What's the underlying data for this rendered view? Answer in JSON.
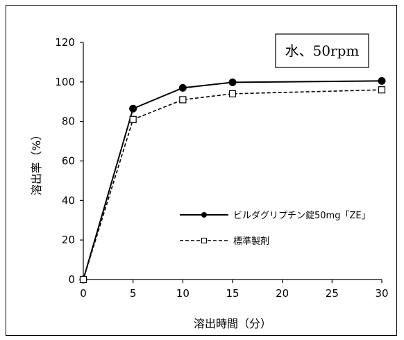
{
  "chart_data": {
    "type": "line",
    "xlabel": "溶出時間（分）",
    "ylabel": "溶出率（%）",
    "xlim": [
      0,
      30
    ],
    "ylim": [
      0,
      120
    ],
    "xticks": [
      0,
      5,
      10,
      15,
      20,
      25,
      30
    ],
    "yticks": [
      0,
      20,
      40,
      60,
      80,
      100,
      120
    ],
    "condition": "水、50rpm",
    "grid": false,
    "legend_position": "lower-right",
    "series": [
      {
        "name": "ビルダグリプチン錠50mg「ZE」",
        "x": [
          0,
          5,
          10,
          15,
          30
        ],
        "values": [
          0,
          86.5,
          97,
          99.8,
          100.5
        ],
        "line": "solid",
        "marker": "filled-circle",
        "color": "#000000"
      },
      {
        "name": "標準製剤",
        "x": [
          0,
          5,
          10,
          15,
          30
        ],
        "values": [
          0,
          81,
          91,
          94,
          96
        ],
        "line": "dashed",
        "marker": "open-square",
        "color": "#000000"
      }
    ]
  }
}
